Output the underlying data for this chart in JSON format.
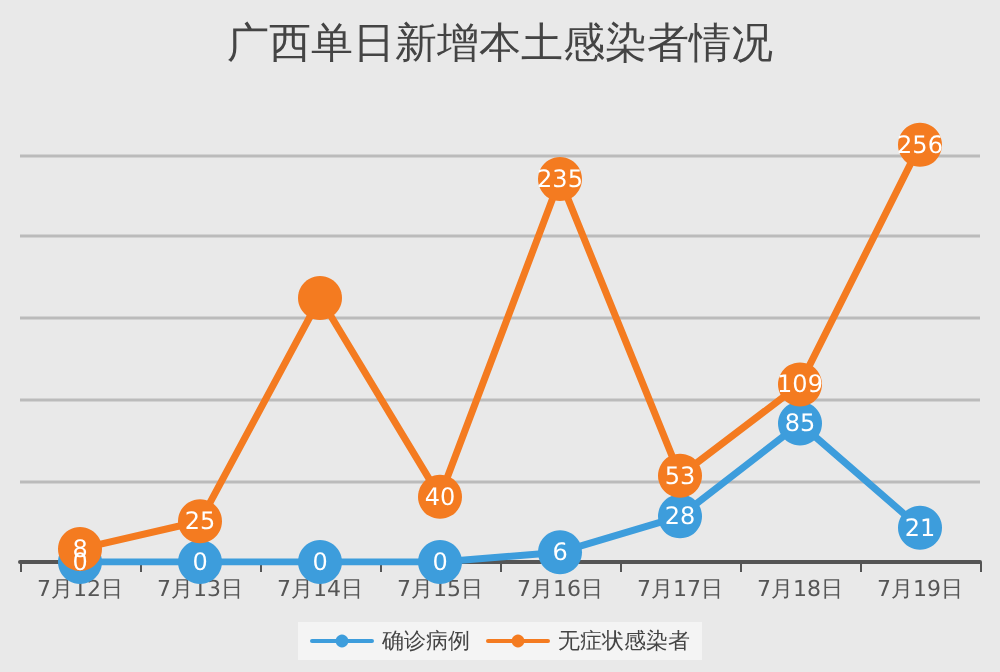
{
  "chart_data": {
    "type": "line",
    "title": "广西单日新增本土感染者情况",
    "categories": [
      "7月12日",
      "7月13日",
      "7月14日",
      "7月15日",
      "7月16日",
      "7月17日",
      "7月18日",
      "7月19日"
    ],
    "series": [
      {
        "name": "确诊病例",
        "color": "#3d9ddc",
        "values": [
          0,
          0,
          0,
          0,
          6,
          28,
          85,
          21
        ],
        "value_labels": [
          "0",
          "0",
          "0",
          "0",
          "6",
          "28",
          "85",
          "21"
        ]
      },
      {
        "name": "无症状感染者",
        "color": "#f47b20",
        "values": [
          8,
          25,
          162,
          40,
          235,
          53,
          109,
          256
        ],
        "value_labels": [
          "8",
          "25",
          null,
          "40",
          "235",
          "53",
          "109",
          "256"
        ]
      }
    ],
    "yticks": [
      {
        "value": 0,
        "label": null
      },
      {
        "value": 50,
        "label": null
      },
      {
        "value": 100,
        "label": null
      },
      {
        "value": 150,
        "label": null
      },
      {
        "value": 200,
        "label": null
      },
      {
        "value": 250,
        "label": null
      }
    ],
    "tick_labels": "x",
    "grid": "y",
    "legend": "bottom",
    "marker": "circle",
    "line_style": "solid"
  }
}
